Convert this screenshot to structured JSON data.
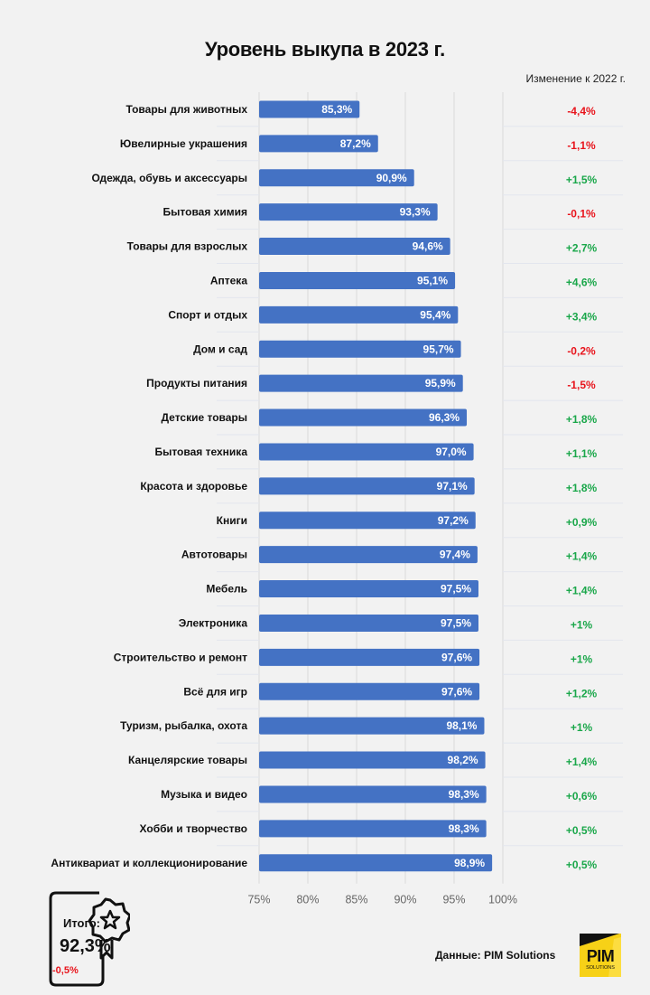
{
  "chart_data": {
    "type": "bar",
    "orientation": "horizontal",
    "title": "Уровень выкупа в 2023 г.",
    "xlabel": "",
    "ylabel": "",
    "xlim": [
      75,
      100
    ],
    "x_ticks": [
      "75%",
      "80%",
      "85%",
      "90%",
      "95%",
      "100%"
    ],
    "x_tick_values": [
      75,
      80,
      85,
      90,
      95,
      100
    ],
    "grid": true,
    "bar_color": "#4472c4",
    "categories": [
      "Товары для животных",
      "Ювелирные украшения",
      "Одежда, обувь и аксессуары",
      "Бытовая химия",
      "Товары для взрослых",
      "Аптека",
      "Спорт и отдых",
      "Дом и сад",
      "Продукты питания",
      "Детские товары",
      "Бытовая техника",
      "Красота и здоровье",
      "Книги",
      "Автотовары",
      "Мебель",
      "Электроника",
      "Строительство и ремонт",
      "Всё для игр",
      "Туризм, рыбалка, охота",
      "Канцелярские товары",
      "Музыка и видео",
      "Хобби и творчество",
      "Антиквариат и коллекционирование"
    ],
    "values": [
      85.3,
      87.2,
      90.9,
      93.3,
      94.6,
      95.1,
      95.4,
      95.7,
      95.9,
      96.3,
      97.0,
      97.1,
      97.2,
      97.4,
      97.5,
      97.5,
      97.6,
      97.6,
      98.1,
      98.2,
      98.3,
      98.3,
      98.9
    ],
    "value_labels": [
      "85,3%",
      "87,2%",
      "90,9%",
      "93,3%",
      "94,6%",
      "95,1%",
      "95,4%",
      "95,7%",
      "95,9%",
      "96,3%",
      "97,0%",
      "97,1%",
      "97,2%",
      "97,4%",
      "97,5%",
      "97,5%",
      "97,6%",
      "97,6%",
      "98,1%",
      "98,2%",
      "98,3%",
      "98,3%",
      "98,9%"
    ],
    "change_header": "Изменение к 2022 г.",
    "changes": [
      -4.4,
      -1.1,
      1.5,
      -0.1,
      2.7,
      4.6,
      3.4,
      -0.2,
      -1.5,
      1.8,
      1.1,
      1.8,
      0.9,
      1.4,
      1.4,
      1.0,
      1.0,
      1.2,
      1.0,
      1.4,
      0.6,
      0.5,
      0.5
    ],
    "change_labels": [
      "-4,4%",
      "-1,1%",
      "+1,5%",
      "-0,1%",
      "+2,7%",
      "+4,6%",
      "+3,4%",
      "-0,2%",
      "-1,5%",
      "+1,8%",
      "+1,1%",
      "+1,8%",
      "+0,9%",
      "+1,4%",
      "+1,4%",
      "+1%",
      "+1%",
      "+1,2%",
      "+1%",
      "+1,4%",
      "+0,6%",
      "+0,5%",
      "+0,5%"
    ],
    "positive_color": "#1aa74a",
    "negative_color": "#e8141c"
  },
  "summary": {
    "label": "Итого:",
    "value": "92,3%",
    "change": "-0,5%"
  },
  "footer": {
    "source": "Данные: PIM Solutions",
    "logo_text": "PIM",
    "logo_subtext": "SOLUTIONS"
  }
}
